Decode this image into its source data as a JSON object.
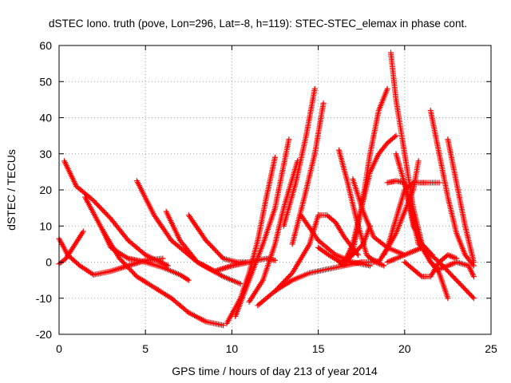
{
  "chart_data": {
    "type": "scatter",
    "title": "dSTEC Iono. truth (pove, Lon=296, Lat=-8, h=119): STEC-STEC_elemax in phase cont.",
    "xlabel": "GPS time / hours of day 213 of year 2014",
    "ylabel": "dSTEC  / TECUs",
    "xlim": [
      0,
      25
    ],
    "ylim": [
      -20,
      60
    ],
    "xticks": [
      0,
      5,
      10,
      15,
      20,
      25
    ],
    "yticks": [
      -20,
      -10,
      0,
      10,
      20,
      30,
      40,
      50,
      60
    ],
    "xtick_labels": [
      "0",
      "5",
      "10",
      "15",
      "20",
      "25"
    ],
    "ytick_labels": [
      "-20",
      "-10",
      "0",
      "10",
      "20",
      "30",
      "40",
      "50",
      "60"
    ],
    "grid": true,
    "legend": "none",
    "marker": "plus",
    "color": "#ff0000",
    "series": [
      {
        "x": [
          0.3,
          1,
          2,
          3,
          4,
          5,
          6.3
        ],
        "y": [
          28,
          21,
          17,
          12,
          6,
          2,
          -1
        ]
      },
      {
        "x": [
          0,
          0.5,
          1.2,
          2,
          3,
          4,
          5,
          6
        ],
        "y": [
          6.5,
          2,
          -1,
          -3.5,
          -2.5,
          -1,
          0.5,
          1
        ]
      },
      {
        "x": [
          0,
          0.4,
          0.8,
          1.4
        ],
        "y": [
          -0.5,
          1,
          4,
          8.5
        ]
      },
      {
        "x": [
          1.5,
          2.5,
          3,
          4,
          5,
          6,
          7,
          7.5
        ],
        "y": [
          18,
          9,
          4,
          1,
          0,
          -1.5,
          -3.5,
          -5
        ]
      },
      {
        "x": [
          2.5,
          3.5,
          4.5,
          5.5,
          6.5,
          7.5,
          8.5,
          9.5
        ],
        "y": [
          9,
          1,
          -4,
          -7,
          -10,
          -14,
          -16.5,
          -17.5
        ]
      },
      {
        "x": [
          4.5,
          5.5,
          6.5,
          8,
          9.5,
          10.5
        ],
        "y": [
          22.5,
          13,
          6,
          0,
          -4,
          -6
        ]
      },
      {
        "x": [
          6.2,
          7,
          8,
          9,
          10,
          11,
          12,
          12.5
        ],
        "y": [
          14,
          6,
          0,
          -2.5,
          -1,
          0,
          1,
          0.5
        ]
      },
      {
        "x": [
          7.5,
          8.5,
          9.5,
          10.3,
          11
        ],
        "y": [
          13,
          6,
          1,
          0,
          0
        ]
      },
      {
        "x": [
          9.7,
          10.5,
          11,
          11.5,
          12,
          12.5
        ],
        "y": [
          -17,
          -10,
          -3,
          6,
          18,
          29
        ]
      },
      {
        "x": [
          10.2,
          11,
          11.8,
          12.5,
          13.3
        ],
        "y": [
          -15,
          -5,
          5,
          15,
          34
        ]
      },
      {
        "x": [
          11,
          11.8,
          12.5,
          13,
          13.8
        ],
        "y": [
          -11,
          -5,
          5,
          15,
          28
        ]
      },
      {
        "x": [
          11.5,
          12.5,
          13.5,
          14.5,
          15.5,
          16.5,
          17.5,
          18.2
        ],
        "y": [
          -12,
          -8,
          -5,
          -3,
          -2,
          -1,
          0,
          0
        ]
      },
      {
        "x": [
          12.5,
          13.5,
          14.5,
          15,
          15.5,
          16,
          16.5,
          17.3
        ],
        "y": [
          -8,
          -3,
          5,
          13,
          13,
          11,
          7,
          2
        ]
      },
      {
        "x": [
          13,
          13.7,
          14.3,
          14.8
        ],
        "y": [
          10,
          22,
          35,
          48
        ]
      },
      {
        "x": [
          13.5,
          14.2,
          14.8,
          15.3
        ],
        "y": [
          5,
          18,
          30,
          44
        ]
      },
      {
        "x": [
          14,
          15,
          16,
          17,
          18
        ],
        "y": [
          13,
          6,
          2,
          0,
          -1
        ]
      },
      {
        "x": [
          15,
          15.6,
          16.3,
          17,
          17.6,
          18
        ],
        "y": [
          4,
          2,
          0,
          2,
          5,
          10
        ]
      },
      {
        "x": [
          16.2,
          16.5,
          17,
          17.5,
          18,
          18.5,
          19
        ],
        "y": [
          0,
          -1,
          3,
          15,
          30,
          42,
          48
        ]
      },
      {
        "x": [
          16.5,
          17,
          17.5,
          18,
          18.5,
          19,
          19.5
        ],
        "y": [
          0,
          5,
          15,
          25,
          30,
          33,
          35
        ]
      },
      {
        "x": [
          16.2,
          16.7,
          17.2,
          17.8,
          18.3,
          18.8
        ],
        "y": [
          31,
          22,
          12,
          2,
          0,
          -1
        ]
      },
      {
        "x": [
          17,
          17.6,
          18.2,
          19,
          20
        ],
        "y": [
          23,
          14,
          7,
          4,
          2
        ]
      },
      {
        "x": [
          18,
          18.5,
          19,
          19.5,
          20,
          20.5,
          21,
          22
        ],
        "y": [
          1,
          0,
          4,
          12,
          20,
          22,
          22,
          22
        ]
      },
      {
        "x": [
          19.2,
          19.5,
          20,
          20.5,
          21,
          21.6
        ],
        "y": [
          58,
          45,
          30,
          15,
          5,
          2
        ]
      },
      {
        "x": [
          19,
          19.5,
          20,
          20.8,
          22,
          23,
          24
        ],
        "y": [
          22,
          22.5,
          22,
          5,
          0,
          -5,
          -10
        ]
      },
      {
        "x": [
          19.5,
          20.1,
          20.5,
          21,
          21.5,
          22,
          22.5
        ],
        "y": [
          30,
          20,
          10,
          5,
          0,
          -3,
          -10
        ]
      },
      {
        "x": [
          18.8,
          19.5,
          20,
          20.5,
          20.8
        ],
        "y": [
          2,
          8,
          14,
          20,
          28
        ]
      },
      {
        "x": [
          19,
          19.5,
          20,
          21
        ],
        "y": [
          0,
          1,
          2,
          4
        ]
      },
      {
        "x": [
          20,
          20.5,
          21,
          21.5,
          22,
          22.5,
          23
        ],
        "y": [
          0,
          -2,
          -4,
          -4,
          0,
          2,
          1
        ]
      },
      {
        "x": [
          21.5,
          22,
          22.5,
          23,
          23.5,
          24
        ],
        "y": [
          42,
          30,
          18,
          8,
          2,
          -1
        ]
      },
      {
        "x": [
          22.5,
          23,
          23.5,
          24
        ],
        "y": [
          34,
          22,
          10,
          0
        ]
      },
      {
        "x": [
          21,
          21.5,
          22,
          22.5,
          23,
          23.7,
          24
        ],
        "y": [
          4,
          0,
          -2,
          -1,
          0,
          -1,
          -4
        ]
      }
    ]
  }
}
